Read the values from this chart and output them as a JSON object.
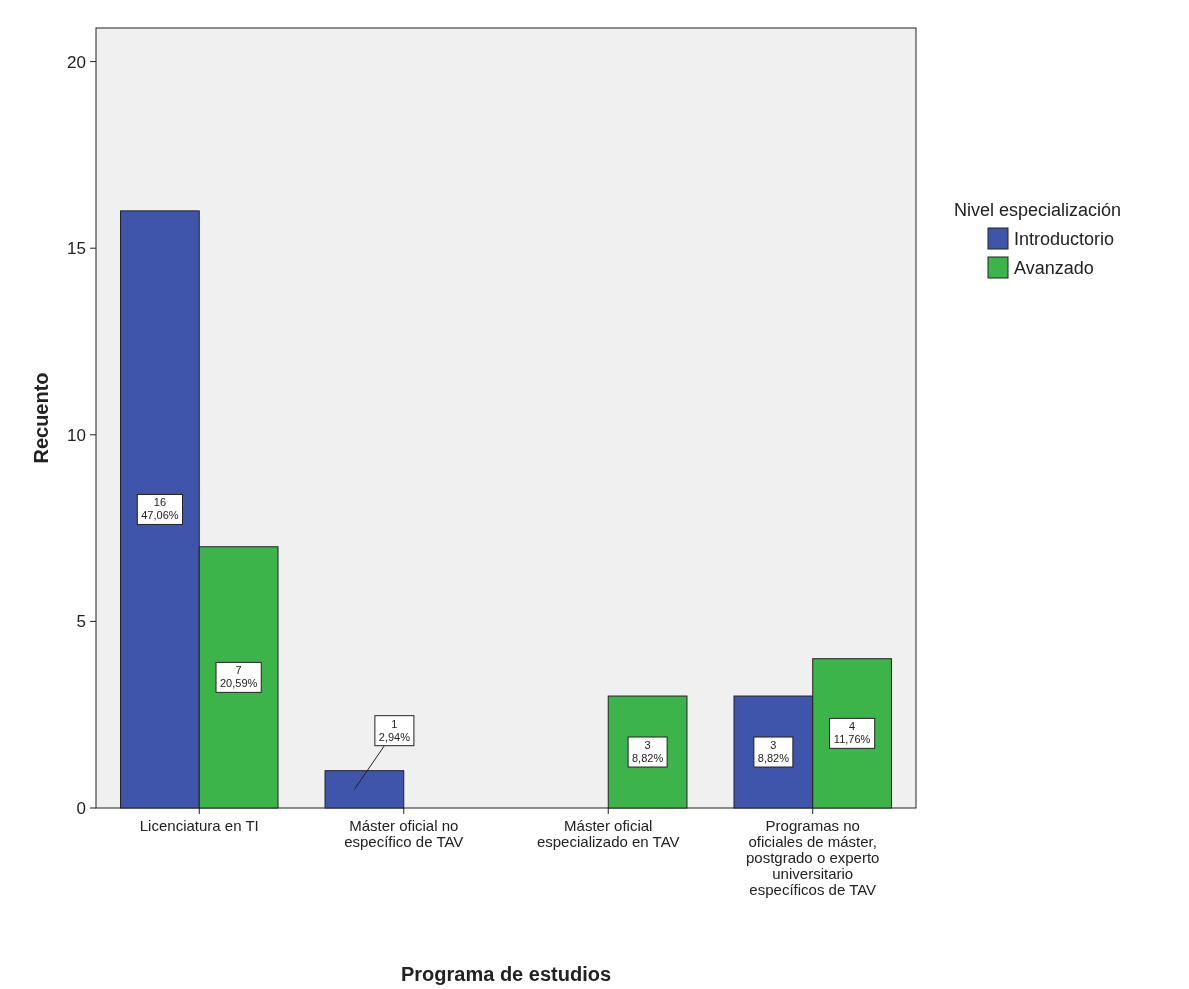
{
  "chart_data": {
    "type": "bar",
    "xlabel": "Programa de estudios",
    "ylabel": "Recuento",
    "legend_title": "Nivel especialización",
    "legend": "right",
    "categories": [
      "Licenciatura en TI",
      "Máster oficial no específico de TAV",
      "Máster oficial especializado en TAV",
      "Programas no oficiales de máster, postgrado o experto universitario específicos de TAV"
    ],
    "series": [
      {
        "name": "Introductorio",
        "color": "#3e55ab",
        "values": [
          16,
          1,
          null,
          3
        ],
        "value_labels": [
          "16\n47,06%",
          "1\n2,94%",
          null,
          "3\n8,82%"
        ]
      },
      {
        "name": "Avanzado",
        "color": "#3cb44a",
        "values": [
          7,
          null,
          3,
          4
        ],
        "value_labels": [
          "7\n20,59%",
          null,
          "3\n8,82%",
          "4\n11,76%"
        ]
      }
    ],
    "ylim": [
      0,
      20.9
    ],
    "yticks": [
      0,
      5,
      10,
      15,
      20
    ],
    "grid": false
  }
}
